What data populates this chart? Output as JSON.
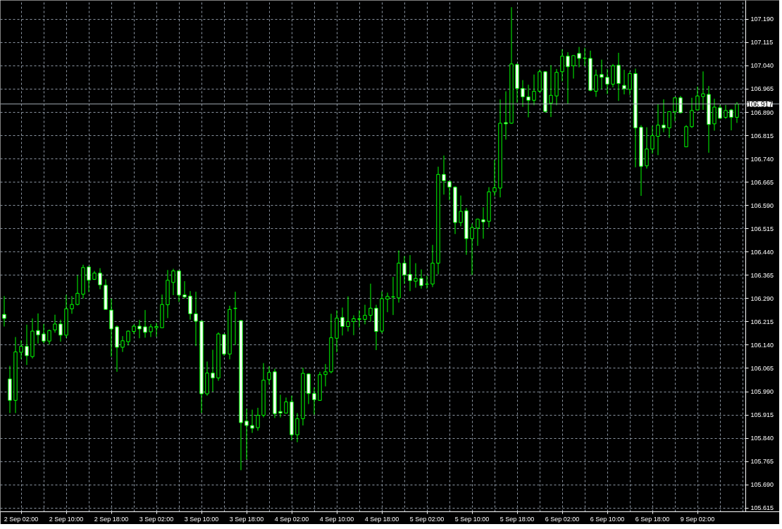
{
  "chart_data": {
    "type": "candlestick",
    "categories": [
      null,
      null,
      null,
      "2 Sep 02:00",
      null,
      null,
      null,
      null,
      null,
      null,
      null,
      "2 Sep 10:00",
      null,
      null,
      null,
      null,
      null,
      null,
      null,
      "2 Sep 18:00",
      null,
      null,
      null,
      null,
      null,
      null,
      null,
      "3 Sep 02:00",
      null,
      null,
      null,
      null,
      null,
      null,
      null,
      "3 Sep 10:00",
      null,
      null,
      null,
      null,
      null,
      null,
      null,
      "3 Sep 18:00",
      null,
      null,
      null,
      null,
      null,
      null,
      null,
      "4 Sep 02:00",
      null,
      null,
      null,
      null,
      null,
      null,
      null,
      "4 Sep 10:00",
      null,
      null,
      null,
      null,
      null,
      null,
      null,
      "4 Sep 18:00",
      null,
      null,
      null,
      null,
      null,
      null,
      null,
      "5 Sep 02:00",
      null,
      null,
      null,
      null,
      null,
      null,
      null,
      "5 Sep 10:00",
      null,
      null,
      null,
      null,
      null,
      null,
      null,
      "5 Sep 18:00",
      null,
      null,
      null,
      null,
      null,
      null,
      null,
      "6 Sep 02:00",
      null,
      null,
      null,
      null,
      null,
      null,
      null,
      "6 Sep 10:00",
      null,
      null,
      null,
      null,
      null,
      null,
      null,
      "6 Sep 18:00",
      null,
      null,
      null,
      null,
      null,
      null,
      null,
      "9 Sep 02:00",
      null,
      null,
      null,
      null,
      null,
      null,
      null
    ],
    "ohlc": [
      [
        106.239,
        106.298,
        106.2,
        106.226
      ],
      [
        106.031,
        106.073,
        105.921,
        105.962
      ],
      [
        105.962,
        106.166,
        105.921,
        106.118
      ],
      [
        106.117,
        106.155,
        106.095,
        106.136
      ],
      [
        106.136,
        106.206,
        106.076,
        106.106
      ],
      [
        106.103,
        106.226,
        106.097,
        106.185
      ],
      [
        106.187,
        106.242,
        106.145,
        106.173
      ],
      [
        106.176,
        106.208,
        106.145,
        106.153
      ],
      [
        106.153,
        106.19,
        106.142,
        106.187
      ],
      [
        106.189,
        106.238,
        106.18,
        106.208
      ],
      [
        106.208,
        106.222,
        106.151,
        106.172
      ],
      [
        106.172,
        106.302,
        106.163,
        106.257
      ],
      [
        106.257,
        106.298,
        106.241,
        106.271
      ],
      [
        106.271,
        106.365,
        106.268,
        106.307
      ],
      [
        106.304,
        106.399,
        106.29,
        106.39
      ],
      [
        106.392,
        106.393,
        106.311,
        106.349
      ],
      [
        106.352,
        106.379,
        106.35,
        106.372
      ],
      [
        106.372,
        106.388,
        106.32,
        106.334
      ],
      [
        106.333,
        106.352,
        106.254,
        106.255
      ],
      [
        106.253,
        106.29,
        106.103,
        106.192
      ],
      [
        106.199,
        106.203,
        106.054,
        106.133
      ],
      [
        106.133,
        106.169,
        106.118,
        106.154
      ],
      [
        106.151,
        106.187,
        106.139,
        106.185
      ],
      [
        106.184,
        106.206,
        106.176,
        106.201
      ],
      [
        106.201,
        106.221,
        106.162,
        106.192
      ],
      [
        106.199,
        106.253,
        106.164,
        106.181
      ],
      [
        106.183,
        106.208,
        106.166,
        106.199
      ],
      [
        106.196,
        106.212,
        106.167,
        106.2
      ],
      [
        106.196,
        106.303,
        106.195,
        106.271
      ],
      [
        106.27,
        106.382,
        106.227,
        106.349
      ],
      [
        106.342,
        106.386,
        106.301,
        106.379
      ],
      [
        106.379,
        106.38,
        106.279,
        106.301
      ],
      [
        106.302,
        106.346,
        106.29,
        106.295
      ],
      [
        106.298,
        106.314,
        106.222,
        106.241
      ],
      [
        106.241,
        106.312,
        106.137,
        106.217
      ],
      [
        106.217,
        106.218,
        105.921,
        105.983
      ],
      [
        105.983,
        106.087,
        105.977,
        106.05
      ],
      [
        106.05,
        106.125,
        105.99,
        106.034
      ],
      [
        106.034,
        106.181,
        106.025,
        106.176
      ],
      [
        106.174,
        106.176,
        106.106,
        106.111
      ],
      [
        106.111,
        106.267,
        106.094,
        106.255
      ],
      [
        106.258,
        106.312,
        106.14,
        106.259
      ],
      [
        106.219,
        106.22,
        105.737,
        105.89
      ],
      [
        105.895,
        105.935,
        105.771,
        105.881
      ],
      [
        105.881,
        105.932,
        105.857,
        105.872
      ],
      [
        105.874,
        105.938,
        105.864,
        105.914
      ],
      [
        105.914,
        106.082,
        105.907,
        106.027
      ],
      [
        106.029,
        106.072,
        106.013,
        106.052
      ],
      [
        106.054,
        106.064,
        105.905,
        105.919
      ],
      [
        105.926,
        105.98,
        105.907,
        105.921
      ],
      [
        105.921,
        105.971,
        105.92,
        105.957
      ],
      [
        105.957,
        105.977,
        105.833,
        105.851
      ],
      [
        105.851,
        105.921,
        105.827,
        105.903
      ],
      [
        105.903,
        106.067,
        105.881,
        106.049
      ],
      [
        106.047,
        106.049,
        105.95,
        105.984
      ],
      [
        105.984,
        106.004,
        105.916,
        105.964
      ],
      [
        105.962,
        106.054,
        105.961,
        106.045
      ],
      [
        106.045,
        106.079,
        106.007,
        106.054
      ],
      [
        106.054,
        106.241,
        106.049,
        106.164
      ],
      [
        106.162,
        106.252,
        106.117,
        106.227
      ],
      [
        106.229,
        106.261,
        106.171,
        106.2
      ],
      [
        106.2,
        106.297,
        106.184,
        106.216
      ],
      [
        106.216,
        106.236,
        106.172,
        106.225
      ],
      [
        106.223,
        106.252,
        106.197,
        106.225
      ],
      [
        106.223,
        106.27,
        106.207,
        106.236
      ],
      [
        106.236,
        106.338,
        106.216,
        106.259
      ],
      [
        106.259,
        106.27,
        106.124,
        106.184
      ],
      [
        106.185,
        106.313,
        106.178,
        106.29
      ],
      [
        106.288,
        106.309,
        106.246,
        106.297
      ],
      [
        106.295,
        106.36,
        106.237,
        106.296
      ],
      [
        106.292,
        106.445,
        106.277,
        106.404
      ],
      [
        106.404,
        106.427,
        106.337,
        106.366
      ],
      [
        106.368,
        106.43,
        106.314,
        106.348
      ],
      [
        106.346,
        106.404,
        106.325,
        106.355
      ],
      [
        106.355,
        106.384,
        106.322,
        106.332
      ],
      [
        106.336,
        106.364,
        106.322,
        106.337
      ],
      [
        106.337,
        106.463,
        106.327,
        106.404
      ],
      [
        106.404,
        106.715,
        106.368,
        106.69
      ],
      [
        106.69,
        106.751,
        106.625,
        106.67
      ],
      [
        106.667,
        106.668,
        106.607,
        106.649
      ],
      [
        106.649,
        106.652,
        106.498,
        106.535
      ],
      [
        106.535,
        106.622,
        106.523,
        106.571
      ],
      [
        106.573,
        106.582,
        106.431,
        106.483
      ],
      [
        106.483,
        106.532,
        106.366,
        106.519
      ],
      [
        106.517,
        106.547,
        106.46,
        106.546
      ],
      [
        106.544,
        106.584,
        106.483,
        106.537
      ],
      [
        106.539,
        106.649,
        106.519,
        106.634
      ],
      [
        106.634,
        106.737,
        106.62,
        106.647
      ],
      [
        106.646,
        106.932,
        106.616,
        106.855
      ],
      [
        106.857,
        106.958,
        106.802,
        106.853
      ],
      [
        106.855,
        107.229,
        106.853,
        107.046
      ],
      [
        107.044,
        107.048,
        106.921,
        106.967
      ],
      [
        106.967,
        106.994,
        106.908,
        106.94
      ],
      [
        106.94,
        106.979,
        106.874,
        106.929
      ],
      [
        106.929,
        107.012,
        106.913,
        106.958
      ],
      [
        106.958,
        107.028,
        106.954,
        107.021
      ],
      [
        107.021,
        107.023,
        106.889,
        106.893
      ],
      [
        106.92,
        107.042,
        106.875,
        106.945
      ],
      [
        106.943,
        107.03,
        106.913,
        107.019
      ],
      [
        107.021,
        107.093,
        106.99,
        107.071
      ],
      [
        107.071,
        107.084,
        106.918,
        107.037
      ],
      [
        107.04,
        107.074,
        106.999,
        107.073
      ],
      [
        107.08,
        107.101,
        107.035,
        107.064
      ],
      [
        107.065,
        107.098,
        107.039,
        107.064
      ],
      [
        107.064,
        107.089,
        106.958,
        106.961
      ],
      [
        106.958,
        107.028,
        106.94,
        107.01
      ],
      [
        107.012,
        107.06,
        106.965,
        107.003
      ],
      [
        107.003,
        107.03,
        106.949,
        106.981
      ],
      [
        106.981,
        107.046,
        106.971,
        107.04
      ],
      [
        107.042,
        107.082,
        106.927,
        106.983
      ],
      [
        106.977,
        107.027,
        106.948,
        106.966
      ],
      [
        106.964,
        107.022,
        106.946,
        107.015
      ],
      [
        107.015,
        107.031,
        106.713,
        106.84
      ],
      [
        106.842,
        106.849,
        106.621,
        106.716
      ],
      [
        106.718,
        106.842,
        106.709,
        106.772
      ],
      [
        106.772,
        106.847,
        106.757,
        106.815
      ],
      [
        106.813,
        106.916,
        106.752,
        106.849
      ],
      [
        106.849,
        106.932,
        106.826,
        106.84
      ],
      [
        106.84,
        106.894,
        106.808,
        106.892
      ],
      [
        106.892,
        106.938,
        106.862,
        106.937
      ],
      [
        106.937,
        106.943,
        106.887,
        106.889
      ],
      [
        106.779,
        106.849,
        106.779,
        106.844
      ],
      [
        106.844,
        106.937,
        106.84,
        106.896
      ],
      [
        106.898,
        106.973,
        106.897,
        106.943
      ],
      [
        106.941,
        107.022,
        106.898,
        106.95
      ],
      [
        106.948,
        106.975,
        106.76,
        106.851
      ],
      [
        106.853,
        106.934,
        106.831,
        106.907
      ],
      [
        106.905,
        106.914,
        106.869,
        106.871
      ],
      [
        106.874,
        106.914,
        106.869,
        106.896
      ],
      [
        106.898,
        106.901,
        106.832,
        106.874
      ],
      [
        106.874,
        106.923,
        106.856,
        106.917
      ]
    ],
    "color": "#00ff00",
    "colors": [
      "#ffffff",
      "#ffffff",
      "#000000",
      "#000000",
      "#ffffff",
      "#000000",
      "#ffffff",
      "#ffffff",
      "#000000",
      "#000000",
      "#ffffff",
      "#000000",
      "#000000",
      "#000000",
      "#000000",
      "#ffffff",
      "#000000",
      "#ffffff",
      "#ffffff",
      "#ffffff",
      "#ffffff",
      "#000000",
      "#000000",
      "#000000",
      "#ffffff",
      "#ffffff",
      "#000000",
      "#000000",
      "#000000",
      "#000000",
      "#000000",
      "#ffffff",
      "#ffffff",
      "#ffffff",
      "#ffffff",
      "#ffffff",
      "#000000",
      "#ffffff",
      "#000000",
      "#ffffff",
      "#000000",
      "#000000",
      "#ffffff",
      "#ffffff",
      "#ffffff",
      "#000000",
      "#000000",
      "#000000",
      "#ffffff",
      "#ffffff",
      "#000000",
      "#ffffff",
      "#000000",
      "#000000",
      "#ffffff",
      "#ffffff",
      "#000000",
      "#000000",
      "#000000",
      "#000000",
      "#ffffff",
      "#000000",
      "#000000",
      "#000000",
      "#000000",
      "#000000",
      "#ffffff",
      "#000000",
      "#000000",
      "#000000",
      "#000000",
      "#ffffff",
      "#ffffff",
      "#000000",
      "#ffffff",
      "#000000",
      "#000000",
      "#000000",
      "#ffffff",
      "#ffffff",
      "#ffffff",
      "#000000",
      "#ffffff",
      "#000000",
      "#000000",
      "#ffffff",
      "#000000",
      "#000000",
      "#000000",
      "#ffffff",
      "#000000",
      "#ffffff",
      "#ffffff",
      "#ffffff",
      "#000000",
      "#000000",
      "#ffffff",
      "#000000",
      "#000000",
      "#000000",
      "#ffffff",
      "#000000",
      "#ffffff",
      "#ffffff",
      "#ffffff",
      "#000000",
      "#ffffff",
      "#ffffff",
      "#000000",
      "#ffffff",
      "#ffffff",
      "#000000",
      "#ffffff",
      "#ffffff",
      "#000000",
      "#000000",
      "#000000",
      "#ffffff",
      "#000000",
      "#000000",
      "#ffffff",
      "#000000",
      "#000000",
      "#000000",
      "#000000",
      "#ffffff",
      "#000000",
      "#ffffff",
      "#000000",
      "#ffffff",
      "#000000"
    ],
    "ylim": [
      105.603,
      107.251
    ],
    "yticks": [
      {
        "value": 105.615,
        "label": "105.615"
      },
      {
        "value": 105.69,
        "label": "105.690"
      },
      {
        "value": 105.765,
        "label": "105.765"
      },
      {
        "value": 105.84,
        "label": "105.840"
      },
      {
        "value": 105.915,
        "label": "105.915"
      },
      {
        "value": 105.99,
        "label": "105.990"
      },
      {
        "value": 106.065,
        "label": "106.065"
      },
      {
        "value": 106.14,
        "label": "106.140"
      },
      {
        "value": 106.215,
        "label": "106.215"
      },
      {
        "value": 106.29,
        "label": "106.290"
      },
      {
        "value": 106.365,
        "label": "106.365"
      },
      {
        "value": 106.44,
        "label": "106.440"
      },
      {
        "value": 106.515,
        "label": "106.515"
      },
      {
        "value": 106.59,
        "label": "106.590"
      },
      {
        "value": 106.665,
        "label": "106.665"
      },
      {
        "value": 106.74,
        "label": "106.740"
      },
      {
        "value": 106.815,
        "label": "106.815"
      },
      {
        "value": 106.89,
        "label": "106.890"
      },
      {
        "value": 106.965,
        "label": "106.965"
      },
      {
        "value": 107.04,
        "label": "107.040"
      },
      {
        "value": 107.115,
        "label": "107.115"
      },
      {
        "value": 107.19,
        "label": "107.190"
      }
    ],
    "grid": true,
    "ref_lines": [
      {
        "axis": "y",
        "value": 106.917,
        "label": "106.917",
        "color": "#a0a8b0"
      }
    ]
  }
}
